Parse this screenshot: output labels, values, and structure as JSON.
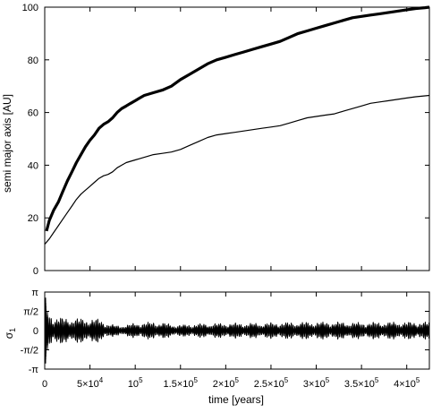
{
  "chart_data": [
    {
      "type": "line",
      "panel": "top",
      "xlabel": "",
      "ylabel": "semi major axis  [AU]",
      "xlim": [
        0,
        425000
      ],
      "ylim": [
        0,
        100
      ],
      "yticks": [
        "0",
        "20",
        "40",
        "60",
        "80",
        "100"
      ],
      "xticks": [
        0,
        50000,
        100000,
        150000,
        200000,
        250000,
        300000,
        350000,
        400000
      ],
      "grid": false,
      "legend": "none",
      "series": [
        {
          "color": "#000000",
          "thick": true,
          "x": [
            2000,
            5000,
            10000,
            15000,
            20000,
            25000,
            30000,
            35000,
            40000,
            45000,
            50000,
            55000,
            60000,
            65000,
            70000,
            75000,
            80000,
            85000,
            90000,
            95000,
            100000,
            105000,
            110000,
            115000,
            120000,
            130000,
            140000,
            150000,
            160000,
            170000,
            180000,
            190000,
            200000,
            210000,
            220000,
            230000,
            240000,
            250000,
            260000,
            270000,
            280000,
            290000,
            300000,
            310000,
            320000,
            330000,
            340000,
            350000,
            360000,
            370000,
            380000,
            390000,
            400000,
            410000,
            420000,
            425000
          ],
          "y": [
            15,
            19,
            23,
            26,
            30,
            34,
            37.5,
            41,
            44,
            47,
            49.5,
            51.5,
            54,
            55.5,
            56.5,
            58,
            60,
            61.5,
            62.5,
            63.5,
            64.5,
            65.5,
            66.5,
            67,
            67.5,
            68.5,
            70,
            72.5,
            74.5,
            76.5,
            78.5,
            80,
            81,
            82,
            83,
            84,
            85,
            86,
            87,
            88.5,
            90,
            91,
            92,
            93,
            94,
            95,
            96,
            96.5,
            97,
            97.5,
            98,
            98.5,
            99,
            99.5,
            99.8,
            100
          ]
        },
        {
          "color": "#000000",
          "thick": false,
          "x": [
            0,
            5000,
            10000,
            15000,
            20000,
            25000,
            30000,
            35000,
            40000,
            45000,
            50000,
            55000,
            60000,
            65000,
            70000,
            75000,
            80000,
            85000,
            90000,
            95000,
            100000,
            105000,
            110000,
            115000,
            120000,
            130000,
            140000,
            150000,
            160000,
            170000,
            180000,
            190000,
            200000,
            210000,
            220000,
            230000,
            240000,
            250000,
            260000,
            270000,
            280000,
            290000,
            300000,
            310000,
            320000,
            330000,
            340000,
            350000,
            360000,
            370000,
            380000,
            390000,
            400000,
            410000,
            425000
          ],
          "y": [
            10,
            12,
            14.5,
            17,
            19.5,
            22,
            24.5,
            27,
            29,
            30.5,
            32,
            33.5,
            35,
            36,
            36.5,
            37.5,
            39,
            40,
            41,
            41.5,
            42,
            42.5,
            43,
            43.5,
            44,
            44.5,
            45,
            46,
            47.5,
            49,
            50.5,
            51.5,
            52,
            52.5,
            53,
            53.5,
            54,
            54.5,
            55,
            56,
            57,
            58,
            58.5,
            59,
            59.5,
            60.5,
            61.5,
            62.5,
            63.5,
            64,
            64.5,
            65,
            65.5,
            66,
            66.5
          ]
        }
      ]
    },
    {
      "type": "line",
      "panel": "bottom",
      "xlabel": "time  [years]",
      "ylabel": "σ",
      "ylabel_subscript": "1",
      "xlim": [
        0,
        425000
      ],
      "ylim": [
        -3.14159,
        3.14159
      ],
      "yticks": [
        "-π",
        "-π/2",
        "0",
        "π/2",
        "π"
      ],
      "xticks": [
        0,
        50000,
        100000,
        150000,
        200000,
        250000,
        300000,
        350000,
        400000
      ],
      "xtick_labels": [
        {
          "base": "0",
          "exp": ""
        },
        {
          "base": "5×10",
          "exp": "4"
        },
        {
          "base": "10",
          "exp": "5"
        },
        {
          "base": "1.5×10",
          "exp": "5"
        },
        {
          "base": "2×10",
          "exp": "5"
        },
        {
          "base": "2.5×10",
          "exp": "5"
        },
        {
          "base": "3×10",
          "exp": "5"
        },
        {
          "base": "3.5×10",
          "exp": "5"
        },
        {
          "base": "4×10",
          "exp": "5"
        }
      ],
      "grid": false,
      "legend": "none",
      "series": [
        {
          "color": "#000000",
          "description_amplitude": {
            "x": [
              0,
              3000,
              6000,
              10000,
              20000,
              40000,
              60000,
              70000,
              80000,
              90000,
              100000,
              110000,
              120000,
              130000,
              140000,
              150000,
              170000,
              200000,
              230000,
              260000,
              290000,
              320000,
              350000,
              380000,
              410000,
              425000
            ],
            "y": [
              3.14,
              2.0,
              1.5,
              1.2,
              1.1,
              1.05,
              1.0,
              0.6,
              0.45,
              0.5,
              0.65,
              0.7,
              0.75,
              0.7,
              0.55,
              0.5,
              0.6,
              0.65,
              0.65,
              0.7,
              0.75,
              0.75,
              0.7,
              0.75,
              0.75,
              0.75
            ]
          }
        }
      ]
    }
  ]
}
